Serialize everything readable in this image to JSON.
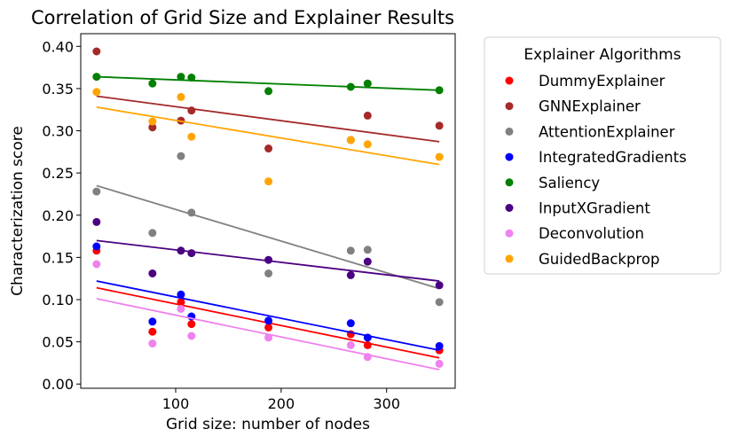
{
  "chart_data": {
    "type": "scatter",
    "title": "Correlation of Grid Size and Explainer Results",
    "xlabel": "Grid size: number of nodes",
    "ylabel": "Characterization score",
    "xlim": [
      10,
      365
    ],
    "ylim": [
      -0.005,
      0.415
    ],
    "xticks": [
      100,
      200,
      300
    ],
    "yticks": [
      0.0,
      0.05,
      0.1,
      0.15,
      0.2,
      0.25,
      0.3,
      0.35,
      0.4
    ],
    "ytick_labels": [
      "0.00",
      "0.05",
      "0.10",
      "0.15",
      "0.20",
      "0.25",
      "0.30",
      "0.35",
      "0.40"
    ],
    "legend_title": "Explainer Algorithms",
    "legend_position": "outside right",
    "grid": false,
    "x": [
      25,
      78,
      105,
      115,
      188,
      266,
      282,
      350
    ],
    "series": [
      {
        "name": "DummyExplainer",
        "color": "#ff0000",
        "values": [
          0.158,
          0.062,
          0.097,
          0.071,
          0.067,
          0.059,
          0.046,
          0.04
        ],
        "trend": [
          0.114,
          0.031
        ]
      },
      {
        "name": "GNNExplainer",
        "color": "#a52a2a",
        "values": [
          0.394,
          0.304,
          0.312,
          0.324,
          0.279,
          0.289,
          0.318,
          0.306
        ],
        "trend": [
          0.341,
          0.287
        ]
      },
      {
        "name": "AttentionExplainer",
        "color": "#808080",
        "values": [
          0.228,
          0.179,
          0.27,
          0.203,
          0.131,
          0.158,
          0.159,
          0.097
        ],
        "trend": [
          0.235,
          0.113
        ]
      },
      {
        "name": "IntegratedGradients",
        "color": "#0000ff",
        "values": [
          0.163,
          0.074,
          0.106,
          0.08,
          0.075,
          0.072,
          0.055,
          0.045
        ],
        "trend": [
          0.122,
          0.04
        ]
      },
      {
        "name": "Saliency",
        "color": "#008000",
        "values": [
          0.364,
          0.356,
          0.364,
          0.363,
          0.347,
          0.352,
          0.356,
          0.348
        ],
        "trend": [
          0.364,
          0.348
        ]
      },
      {
        "name": "InputXGradient",
        "color": "#4b0082",
        "values": [
          0.192,
          0.131,
          0.158,
          0.155,
          0.147,
          0.129,
          0.145,
          0.117
        ],
        "trend": [
          0.17,
          0.122
        ]
      },
      {
        "name": "Deconvolution",
        "color": "#ee82ee",
        "values": [
          0.142,
          0.048,
          0.089,
          0.057,
          0.055,
          0.046,
          0.032,
          0.024
        ],
        "trend": [
          0.101,
          0.017
        ]
      },
      {
        "name": "GuidedBackprop",
        "color": "#ffa500",
        "values": [
          0.346,
          0.311,
          0.34,
          0.293,
          0.24,
          0.289,
          0.284,
          0.269
        ],
        "trend": [
          0.328,
          0.26
        ]
      }
    ]
  }
}
